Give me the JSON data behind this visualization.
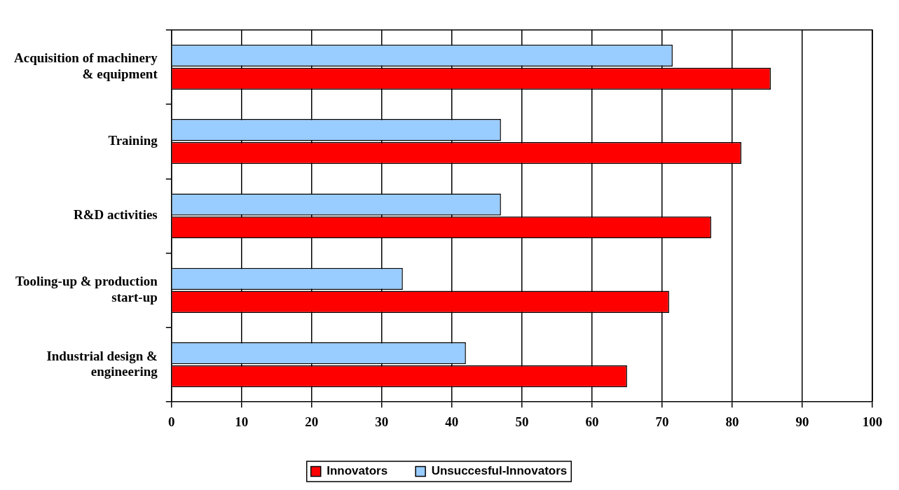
{
  "chart_data": {
    "type": "bar",
    "orientation": "horizontal",
    "categories": [
      [
        "Acquisition of machinery",
        "& equipment"
      ],
      "Training",
      "R&D activities",
      [
        "Tooling-up & production",
        "start-up"
      ],
      [
        "Industrial design &",
        "engineering"
      ]
    ],
    "series": [
      {
        "name": "Innovators",
        "color": "#ff0000",
        "values": [
          85.5,
          81.3,
          77,
          71,
          65
        ]
      },
      {
        "name": "Unsuccesful-Innovators",
        "color": "#99ccff",
        "values": [
          71.5,
          47,
          47,
          33,
          42
        ]
      }
    ],
    "xlim": [
      0,
      100
    ],
    "xticks": [
      0,
      10,
      20,
      30,
      40,
      50,
      60,
      70,
      80,
      90,
      100
    ],
    "grid": "x",
    "legend": "bottom"
  }
}
